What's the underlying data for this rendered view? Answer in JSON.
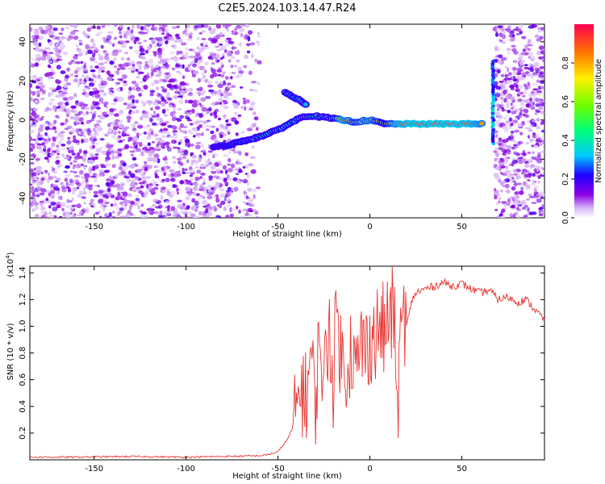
{
  "title": "C2E5.2024.103.14.47.R24",
  "chart_data": [
    {
      "type": "heatmap",
      "xlabel": "Height of straight line (km)",
      "ylabel": "Frequency (Hz)",
      "xlim": [
        -185,
        95
      ],
      "ylim": [
        -50,
        49
      ],
      "x_ticks": [
        "-150",
        "-100",
        "-50",
        "0",
        "50"
      ],
      "x_tick_values": [
        -150,
        -100,
        -50,
        0,
        50
      ],
      "y_ticks": [
        "40",
        "20",
        "0",
        "-20",
        "-40"
      ],
      "y_tick_values": [
        40,
        20,
        0,
        -20,
        -40
      ],
      "colorbar": {
        "label": "Normalized spectral amplitude",
        "ticks": [
          "0.0",
          "0.2",
          "0.4",
          "0.6",
          "0.8"
        ],
        "tick_values": [
          0.0,
          0.2,
          0.4,
          0.6,
          0.8
        ],
        "range": [
          0,
          1
        ]
      },
      "noise_regions": [
        {
          "x_from": -185,
          "x_to": -60,
          "amplitude": 0.12
        },
        {
          "x_from": 68,
          "x_to": 95,
          "amplitude": 0.12
        }
      ],
      "signal_trace": [
        {
          "x": -85,
          "y": -14,
          "amp": 0.15
        },
        {
          "x": -78,
          "y": -13,
          "amp": 0.22
        },
        {
          "x": -70,
          "y": -11,
          "amp": 0.28
        },
        {
          "x": -62,
          "y": -9,
          "amp": 0.32
        },
        {
          "x": -55,
          "y": -7,
          "amp": 0.38
        },
        {
          "x": -48,
          "y": -4,
          "amp": 0.35
        },
        {
          "x": -42,
          "y": -1,
          "amp": 0.3
        },
        {
          "x": -36,
          "y": 2,
          "amp": 0.35
        },
        {
          "x": -30,
          "y": 2,
          "amp": 0.4
        },
        {
          "x": -22,
          "y": 1,
          "amp": 0.45
        },
        {
          "x": -15,
          "y": 0,
          "amp": 0.85
        },
        {
          "x": -8,
          "y": -1,
          "amp": 0.7
        },
        {
          "x": 0,
          "y": 0,
          "amp": 0.8
        },
        {
          "x": 8,
          "y": -2,
          "amp": 0.6
        },
        {
          "x": 15,
          "y": -2,
          "amp": 0.85
        },
        {
          "x": 25,
          "y": -2,
          "amp": 0.95
        },
        {
          "x": 35,
          "y": -2,
          "amp": 0.95
        },
        {
          "x": 45,
          "y": -2,
          "amp": 0.95
        },
        {
          "x": 55,
          "y": -2,
          "amp": 0.9
        },
        {
          "x": 62,
          "y": -2,
          "amp": 0.8
        }
      ],
      "signal_branch": [
        {
          "x": -46,
          "y": 14,
          "amp": 0.35
        },
        {
          "x": -42,
          "y": 12,
          "amp": 0.3
        },
        {
          "x": -38,
          "y": 10,
          "amp": 0.35
        },
        {
          "x": -34,
          "y": 7,
          "amp": 0.3
        }
      ],
      "vertical_feature": {
        "x": 67,
        "y_from": -12,
        "y_to": 30,
        "amp": 0.3
      }
    },
    {
      "type": "line",
      "xlabel": "Height of straight line (km)",
      "ylabel": "SNR (10 * v/v)",
      "scale_label": "(x10",
      "scale_exponent": "4",
      "scale_close": ")",
      "xlim": [
        -185,
        95
      ],
      "ylim": [
        0,
        1.45
      ],
      "x_ticks": [
        "-150",
        "-100",
        "-50",
        "0",
        "50"
      ],
      "x_tick_values": [
        -150,
        -100,
        -50,
        0,
        50
      ],
      "y_ticks": [
        "0.2",
        "0.4",
        "0.6",
        "0.8",
        "1.0",
        "1.2",
        "1.4"
      ],
      "y_tick_values": [
        0.2,
        0.4,
        0.6,
        0.8,
        1.0,
        1.2,
        1.4
      ],
      "color": "#e8332f",
      "series": [
        {
          "x": [
            -185,
            -160,
            -130,
            -100,
            -80,
            -60,
            -55,
            -50,
            -45,
            -40,
            -38,
            -35,
            -32,
            -30,
            -27,
            -25,
            -22,
            -20,
            -18,
            -15,
            -12,
            -10,
            -7,
            -5,
            -2,
            0,
            3,
            5,
            8,
            10,
            13,
            15,
            18,
            20,
            23,
            25,
            30,
            35,
            40,
            45,
            50,
            55,
            60,
            65,
            70,
            75,
            80,
            85,
            90,
            95
          ],
          "y": [
            0.02,
            0.02,
            0.025,
            0.02,
            0.025,
            0.03,
            0.04,
            0.06,
            0.15,
            0.3,
            0.6,
            0.45,
            0.8,
            0.4,
            0.95,
            0.55,
            1.05,
            0.6,
            1.1,
            0.7,
            0.75,
            0.85,
            0.6,
            0.9,
            0.8,
            0.95,
            0.9,
            1.0,
            0.95,
            1.05,
            1.1,
            0.4,
            1.15,
            1.0,
            1.2,
            1.25,
            1.28,
            1.3,
            1.33,
            1.3,
            1.32,
            1.28,
            1.25,
            1.27,
            1.2,
            1.22,
            1.18,
            1.2,
            1.12,
            1.05
          ]
        }
      ]
    }
  ]
}
